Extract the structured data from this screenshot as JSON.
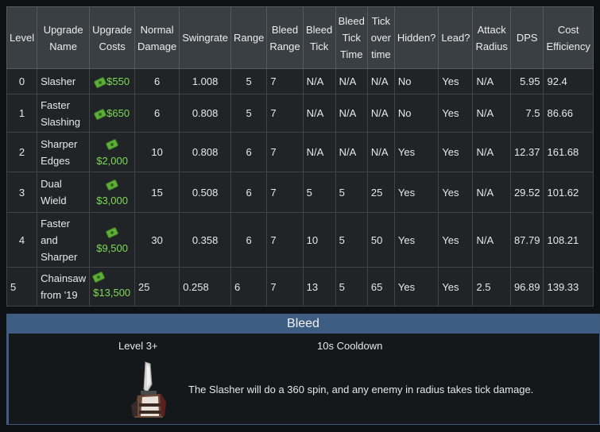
{
  "table": {
    "headers": [
      [
        "Level"
      ],
      [
        "Upgrade",
        "Name"
      ],
      [
        "Upgrade",
        "Costs"
      ],
      [
        "Normal",
        "Damage"
      ],
      [
        "Swingrate"
      ],
      [
        "Range"
      ],
      [
        "Bleed",
        "Range"
      ],
      [
        "Bleed",
        "Tick"
      ],
      [
        "Bleed",
        "Tick",
        "Time"
      ],
      [
        "Tick",
        "over",
        "time"
      ],
      [
        "Hidden?"
      ],
      [
        "Lead?"
      ],
      [
        "Attack",
        "Radius"
      ],
      [
        "DPS"
      ],
      [
        "Cost",
        "Efficiency"
      ]
    ],
    "rows": [
      {
        "level": "0",
        "name": [
          "Slasher"
        ],
        "cost": "$550",
        "damage": "6",
        "swingrate": "1.008",
        "range": "5",
        "bleed_range": "7",
        "bleed_tick": "N/A",
        "bleed_tick_time": "N/A",
        "tick_over_time": "N/A",
        "hidden": "No",
        "lead": "Yes",
        "attack_radius": "N/A",
        "dps": "5.95",
        "cost_efficiency": "92.4"
      },
      {
        "level": "1",
        "name": [
          "Faster",
          "Slashing"
        ],
        "cost": "$650",
        "damage": "6",
        "swingrate": "0.808",
        "range": "5",
        "bleed_range": "7",
        "bleed_tick": "N/A",
        "bleed_tick_time": "N/A",
        "tick_over_time": "N/A",
        "hidden": "No",
        "lead": "Yes",
        "attack_radius": "N/A",
        "dps": "7.5",
        "cost_efficiency": "86.66"
      },
      {
        "level": "2",
        "name": [
          "Sharper",
          "Edges"
        ],
        "cost": "$2,000",
        "damage": "10",
        "swingrate": "0.808",
        "range": "6",
        "bleed_range": "7",
        "bleed_tick": "N/A",
        "bleed_tick_time": "N/A",
        "tick_over_time": "N/A",
        "hidden": "Yes",
        "lead": "Yes",
        "attack_radius": "N/A",
        "dps": "12.37",
        "cost_efficiency": "161.68"
      },
      {
        "level": "3",
        "name": [
          "Dual",
          "Wield"
        ],
        "cost": "$3,000",
        "damage": "15",
        "swingrate": "0.508",
        "range": "6",
        "bleed_range": "7",
        "bleed_tick": "5",
        "bleed_tick_time": "5",
        "tick_over_time": "25",
        "hidden": "Yes",
        "lead": "Yes",
        "attack_radius": "N/A",
        "dps": "29.52",
        "cost_efficiency": "101.62"
      },
      {
        "level": "4",
        "name": [
          "Faster",
          "and",
          "Sharper"
        ],
        "cost": "$9,500",
        "damage": "30",
        "swingrate": "0.358",
        "range": "6",
        "bleed_range": "7",
        "bleed_tick": "10",
        "bleed_tick_time": "5",
        "tick_over_time": "50",
        "hidden": "Yes",
        "lead": "Yes",
        "attack_radius": "N/A",
        "dps": "87.79",
        "cost_efficiency": "108.21"
      },
      {
        "level": "5",
        "name": [
          "Chainsaw",
          "from '19"
        ],
        "cost": "$13,500",
        "damage": "25",
        "swingrate": "0.258",
        "range": "6",
        "bleed_range": "7",
        "bleed_tick": "13",
        "bleed_tick_time": "5",
        "tick_over_time": "65",
        "hidden": "Yes",
        "lead": "Yes",
        "attack_radius": "2.5",
        "dps": "96.89",
        "cost_efficiency": "139.33"
      }
    ]
  },
  "ability": {
    "title": "Bleed",
    "level_requirement": "Level 3+",
    "cooldown": "10s Cooldown",
    "description": "The Slasher will do a 360 spin, and any enemy in radius takes tick damage.",
    "icon": "knife-icon"
  },
  "colors": {
    "header_bg": "#3a3f44",
    "cell_bg": "#202427",
    "cost_green": "#7ed957",
    "ability_header": "#3e5d82"
  }
}
